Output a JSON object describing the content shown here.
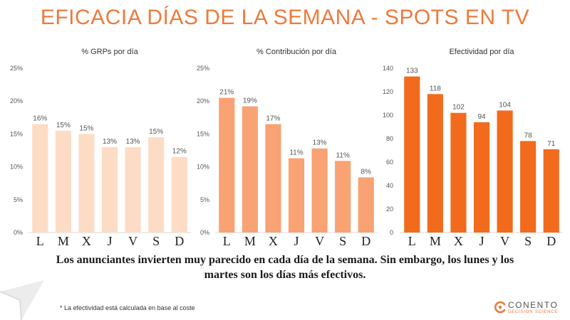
{
  "title": "EFICACIA DÍAS DE LA SEMANA - SPOTS EN TV",
  "chart_data": [
    {
      "type": "bar",
      "title": "% GRPs por día",
      "categories": [
        "L",
        "M",
        "X",
        "J",
        "V",
        "S",
        "D"
      ],
      "values": [
        16.5,
        15.5,
        15,
        13,
        13,
        14.5,
        11.5
      ],
      "data_labels": [
        "16%",
        "15%",
        "15%",
        "13%",
        "13%",
        "15%",
        "12%"
      ],
      "yticks": [
        "0%",
        "5%",
        "10%",
        "15%",
        "20%",
        "25%"
      ],
      "ylim": [
        0,
        25
      ],
      "color": "#fddcc6"
    },
    {
      "type": "bar",
      "title": "% Contribución por día",
      "categories": [
        "L",
        "M",
        "X",
        "J",
        "V",
        "S",
        "D"
      ],
      "values": [
        20.5,
        19.2,
        16.5,
        11.3,
        12.8,
        10.9,
        8.4
      ],
      "data_labels": [
        "21%",
        "19%",
        "17%",
        "11%",
        "13%",
        "11%",
        "8%"
      ],
      "yticks": [
        "0%",
        "5%",
        "10%",
        "15%",
        "20%",
        "25%"
      ],
      "ylim": [
        0,
        25
      ],
      "color": "#f9a273"
    },
    {
      "type": "bar",
      "title": "Efectividad por día",
      "categories": [
        "L",
        "M",
        "X",
        "J",
        "V",
        "S",
        "D"
      ],
      "values": [
        133,
        118,
        102,
        94,
        104,
        78,
        71
      ],
      "data_labels": [
        "133",
        "118",
        "102",
        "94",
        "104",
        "78",
        "71"
      ],
      "yticks": [
        "0",
        "20",
        "40",
        "60",
        "80",
        "100",
        "120",
        "140"
      ],
      "ylim": [
        0,
        140
      ],
      "color": "#f26b1d"
    }
  ],
  "summary": "Los anunciantes invierten muy parecido en cada día de la semana. Sin embargo, los lunes y los martes son los días más efectivos.",
  "footnote": "* La efectividad está calculada en base al coste",
  "brand": {
    "name": "CONENTO",
    "tagline": "DECISION SCIENCE",
    "color": "#ee7a3b"
  }
}
